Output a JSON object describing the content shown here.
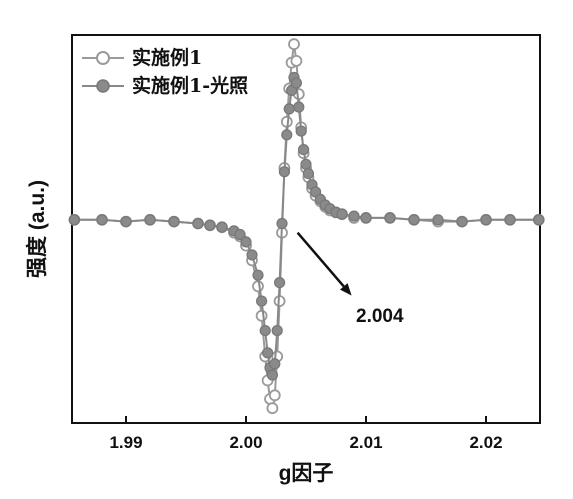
{
  "chart_data": {
    "type": "line",
    "title": "",
    "xlabel": "g因子",
    "ylabel": "强度 (a.u.)",
    "xlim": [
      1.9855,
      2.0245
    ],
    "ylim": [
      -1.08,
      1.02
    ],
    "xticks": [
      1.99,
      2.0,
      2.01,
      2.02
    ],
    "xtick_labels": [
      "1.99",
      "2.00",
      "2.01",
      "2.02"
    ],
    "y_ticks_shown": false,
    "grid": false,
    "legend_position": "top-left",
    "annotation": {
      "text": "2.004",
      "arrow_from": [
        2.0043,
        -0.05
      ],
      "arrow_to": [
        2.0088,
        -0.39
      ]
    },
    "series": [
      {
        "name": "实施例1",
        "marker": "open-circle",
        "color": "#9a9a9a",
        "x": [
          1.9857,
          1.988,
          1.99,
          1.992,
          1.994,
          1.996,
          1.997,
          1.998,
          1.999,
          1.9995,
          2.0,
          2.0005,
          2.001,
          2.0013,
          2.0016,
          2.0018,
          2.002,
          2.0022,
          2.0024,
          2.0026,
          2.0028,
          2.003,
          2.0032,
          2.0034,
          2.0036,
          2.0038,
          2.004,
          2.0042,
          2.0044,
          2.0046,
          2.0048,
          2.005,
          2.0052,
          2.0055,
          2.0058,
          2.0062,
          2.0066,
          2.007,
          2.0075,
          2.008,
          2.009,
          2.01,
          2.012,
          2.014,
          2.016,
          2.018,
          2.02,
          2.022,
          2.0244
        ],
        "y": [
          0.02,
          0.02,
          0.01,
          0.02,
          0.01,
          0.0,
          -0.01,
          -0.02,
          -0.05,
          -0.07,
          -0.12,
          -0.2,
          -0.34,
          -0.5,
          -0.72,
          -0.85,
          -0.95,
          -1.0,
          -0.93,
          -0.72,
          -0.42,
          -0.05,
          0.3,
          0.55,
          0.73,
          0.87,
          0.97,
          0.88,
          0.7,
          0.52,
          0.38,
          0.3,
          0.25,
          0.19,
          0.15,
          0.12,
          0.09,
          0.07,
          0.06,
          0.05,
          0.03,
          0.03,
          0.03,
          0.02,
          0.01,
          0.01,
          0.02,
          0.02,
          0.02
        ]
      },
      {
        "name": "实施例1-光照",
        "marker": "filled-circle",
        "color": "#888888",
        "x": [
          1.9857,
          1.988,
          1.99,
          1.992,
          1.994,
          1.996,
          1.997,
          1.998,
          1.999,
          1.9995,
          2.0,
          2.0005,
          2.001,
          2.0013,
          2.0016,
          2.0018,
          2.002,
          2.0022,
          2.0024,
          2.0026,
          2.0028,
          2.003,
          2.0032,
          2.0034,
          2.0036,
          2.0038,
          2.004,
          2.0042,
          2.0044,
          2.0046,
          2.0048,
          2.005,
          2.0052,
          2.0055,
          2.0058,
          2.0062,
          2.0066,
          2.007,
          2.0075,
          2.008,
          2.009,
          2.01,
          2.012,
          2.014,
          2.016,
          2.018,
          2.02,
          2.022,
          2.0244
        ],
        "y": [
          0.02,
          0.02,
          0.01,
          0.02,
          0.01,
          0.0,
          -0.01,
          -0.02,
          -0.04,
          -0.06,
          -0.1,
          -0.17,
          -0.28,
          -0.42,
          -0.58,
          -0.7,
          -0.78,
          -0.82,
          -0.76,
          -0.58,
          -0.32,
          0.0,
          0.28,
          0.48,
          0.62,
          0.72,
          0.79,
          0.76,
          0.63,
          0.5,
          0.4,
          0.32,
          0.27,
          0.21,
          0.17,
          0.13,
          0.1,
          0.08,
          0.06,
          0.05,
          0.04,
          0.03,
          0.03,
          0.02,
          0.02,
          0.01,
          0.02,
          0.02,
          0.02
        ]
      }
    ]
  }
}
